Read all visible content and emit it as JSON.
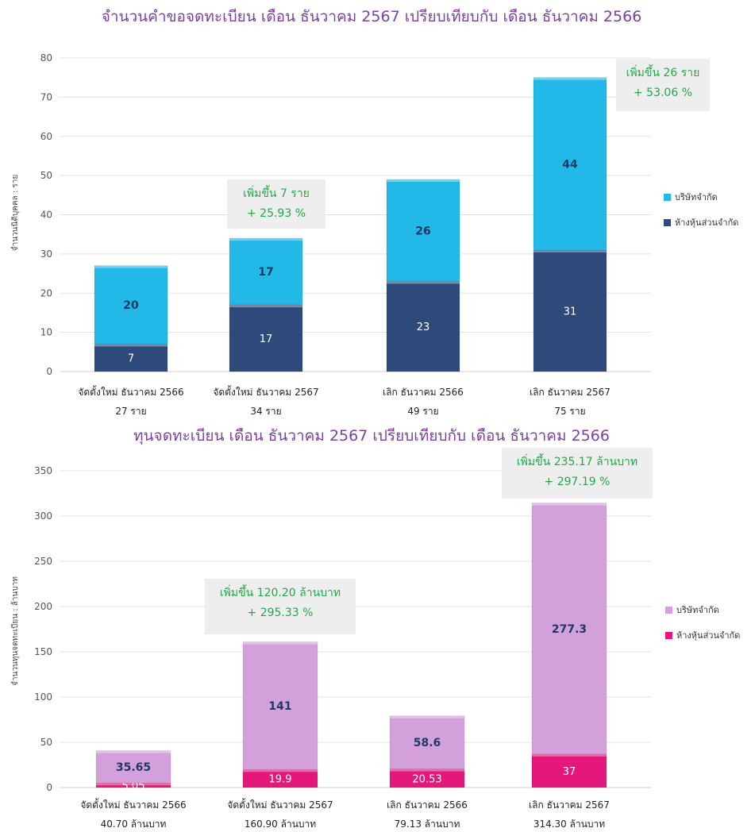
{
  "chart_data": [
    {
      "type": "bar",
      "stacked": true,
      "title": "จำนวนคำขอจดทะเบียน เดือน ธันวาคม 2567 เปรียบเทียบกับ เดือน ธันวาคม 2566",
      "ylabel": "จำนวนนิติบุคคล : ราย",
      "ylim": [
        0,
        80
      ],
      "yticks": [
        0,
        10,
        20,
        30,
        40,
        50,
        60,
        70,
        80
      ],
      "grid": true,
      "legend_position": "right",
      "categories": [
        "จัดตั้งใหม่ ธันวาคม 2566",
        "จัดตั้งใหม่ ธันวาคม 2567",
        "เลิก ธันวาคม 2566",
        "เลิก ธันวาคม 2567"
      ],
      "category_totals": [
        "27 ราย",
        "34 ราย",
        "49 ราย",
        "75 ราย"
      ],
      "series": [
        {
          "name": "ห้างหุ้นส่วนจำกัด",
          "color": "#2e4a7a",
          "labels": [
            "7",
            "17",
            "23",
            "31"
          ],
          "values": [
            7,
            17,
            23,
            31
          ]
        },
        {
          "name": "บริษัทจำกัด",
          "color": "#22b8e8",
          "labels": [
            "20",
            "17",
            "26",
            "44"
          ],
          "values": [
            20,
            17,
            26,
            44
          ]
        }
      ],
      "legend": [
        "บริษัทจำกัด",
        "ห้างหุ้นส่วนจำกัด"
      ],
      "annotations": [
        {
          "category_index": 1,
          "lines": [
            "เพิ่มขึ้น 7 ราย",
            "+ 25.93 %"
          ]
        },
        {
          "category_index": 3,
          "lines": [
            "เพิ่มขึ้น 26 ราย",
            "+ 53.06 %"
          ]
        }
      ]
    },
    {
      "type": "bar",
      "stacked": true,
      "title": "ทุนจดทะเบียน เดือน ธันวาคม 2567 เปรียบเทียบกับ เดือน ธันวาคม 2566",
      "ylabel": "จำนวนทุนจดทะเบียน : ล้านบาท",
      "ylim": [
        0,
        350
      ],
      "yticks": [
        0,
        50,
        100,
        150,
        200,
        250,
        300,
        350
      ],
      "grid": true,
      "legend_position": "right",
      "categories": [
        "จัดตั้งใหม่ ธันวาคม 2566",
        "จัดตั้งใหม่ ธันวาคม 2567",
        "เลิก ธันวาคม 2566",
        "เลิก ธันวาคม 2567"
      ],
      "category_totals": [
        "40.70 ล้านบาท",
        "160.90 ล้านบาท",
        "79.13 ล้านบาท",
        "314.30 ล้านบาท"
      ],
      "series": [
        {
          "name": "ห้างหุ้นส่วนจำกัด",
          "color": "#e5177a",
          "labels": [
            "5.05",
            "19.9",
            "20.53",
            "37"
          ],
          "values": [
            5.05,
            19.9,
            20.53,
            37
          ]
        },
        {
          "name": "บริษัทจำกัด",
          "color": "#d4a0dc",
          "labels": [
            "35.65",
            "141",
            "58.6",
            "277.3"
          ],
          "values": [
            35.65,
            141,
            58.6,
            277.3
          ]
        }
      ],
      "legend": [
        "บริษัทจำกัด",
        "ห้างหุ้นส่วนจำกัด"
      ],
      "annotations": [
        {
          "category_index": 1,
          "lines": [
            "เพิ่มขึ้น 120.20 ล้านบาท",
            "+ 295.33 %"
          ]
        },
        {
          "category_index": 3,
          "lines": [
            "เพิ่มขึ้น 235.17 ล้านบาท",
            "+ 297.19 %"
          ]
        }
      ]
    }
  ]
}
